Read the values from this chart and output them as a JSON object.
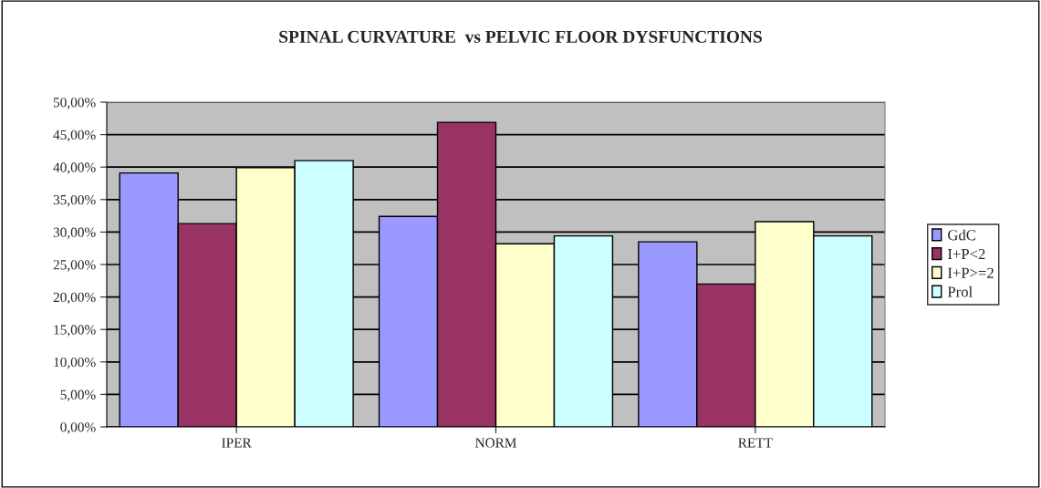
{
  "chart_data": {
    "type": "bar",
    "title": "SPINAL CURVATURE  vs PELVIC FLOOR DYSFUNCTIONS",
    "categories": [
      "IPER",
      "NORM",
      "RETT"
    ],
    "series": [
      {
        "name": "GdC",
        "color": "#9999ff",
        "values": [
          39.1,
          32.4,
          28.5
        ]
      },
      {
        "name": "I+P<2",
        "color": "#993366",
        "values": [
          31.3,
          46.9,
          22.0
        ]
      },
      {
        "name": "I+P>=2",
        "color": "#ffffcc",
        "values": [
          39.9,
          28.2,
          31.6
        ]
      },
      {
        "name": "Prol",
        "color": "#ccffff",
        "values": [
          41.0,
          29.4,
          29.4
        ]
      }
    ],
    "ylim": [
      0,
      50
    ],
    "yticks": [
      {
        "value": 0,
        "label": "0,00%"
      },
      {
        "value": 5,
        "label": "5,00%"
      },
      {
        "value": 10,
        "label": "10,00%"
      },
      {
        "value": 15,
        "label": "15,00%"
      },
      {
        "value": 20,
        "label": "20,00%"
      },
      {
        "value": 25,
        "label": "25,00%"
      },
      {
        "value": 30,
        "label": "30,00%"
      },
      {
        "value": 35,
        "label": "35,00%"
      },
      {
        "value": 40,
        "label": "40,00%"
      },
      {
        "value": 45,
        "label": "45,00%"
      },
      {
        "value": 50,
        "label": "50,00%"
      }
    ],
    "grid": "y",
    "legend": "right"
  }
}
